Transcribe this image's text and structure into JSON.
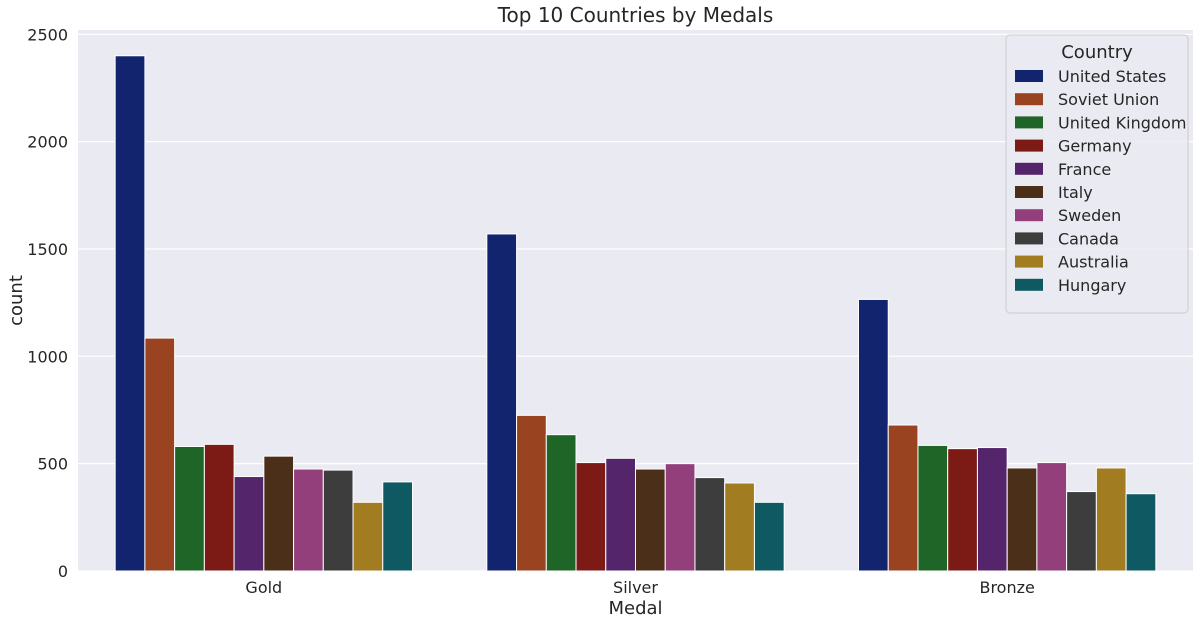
{
  "chart_data": {
    "type": "bar",
    "title": "Top 10 Countries by Medals",
    "xlabel": "Medal",
    "ylabel": "count",
    "categories": [
      "Gold",
      "Silver",
      "Bronze"
    ],
    "ylim": [
      0,
      2520
    ],
    "yticks": [
      0,
      500,
      1000,
      1500,
      2000,
      2500
    ],
    "grid": true,
    "legend": {
      "title": "Country",
      "placement": "top-right"
    },
    "series": [
      {
        "name": "United States",
        "color": "#12246e",
        "values": [
          2400,
          1570,
          1265
        ]
      },
      {
        "name": "Soviet Union",
        "color": "#9a4320",
        "values": [
          1085,
          725,
          680
        ]
      },
      {
        "name": "United Kingdom",
        "color": "#1f6527",
        "values": [
          580,
          635,
          585
        ]
      },
      {
        "name": "Germany",
        "color": "#7c1a15",
        "values": [
          590,
          505,
          570
        ]
      },
      {
        "name": "France",
        "color": "#54256a",
        "values": [
          440,
          525,
          575
        ]
      },
      {
        "name": "Italy",
        "color": "#4c2f19",
        "values": [
          535,
          475,
          480
        ]
      },
      {
        "name": "Sweden",
        "color": "#933f7c",
        "values": [
          475,
          500,
          505
        ]
      },
      {
        "name": "Canada",
        "color": "#3d3d3d",
        "values": [
          470,
          435,
          370
        ]
      },
      {
        "name": "Australia",
        "color": "#a27c20",
        "values": [
          320,
          410,
          480
        ]
      },
      {
        "name": "Hungary",
        "color": "#0f5962",
        "values": [
          415,
          320,
          360
        ]
      }
    ]
  }
}
